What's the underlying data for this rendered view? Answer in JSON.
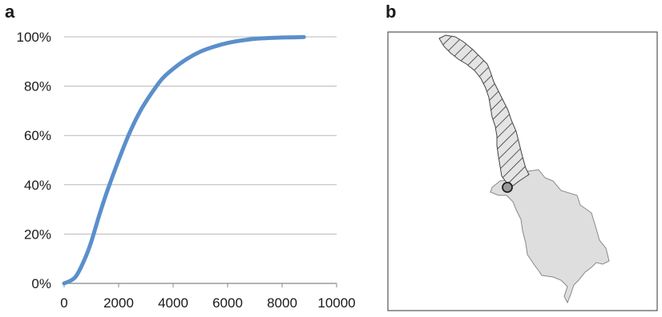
{
  "panels": {
    "a": {
      "letter": "a"
    },
    "b": {
      "letter": "b"
    }
  },
  "chart_data": {
    "type": "line",
    "title": "",
    "xlabel": "",
    "ylabel": "",
    "xlim": [
      0,
      10000
    ],
    "ylim": [
      0,
      100
    ],
    "x_ticks": [
      0,
      2000,
      4000,
      6000,
      8000,
      10000
    ],
    "x_tick_labels": [
      "0",
      "2000",
      "4000",
      "6000",
      "8000",
      "10000"
    ],
    "y_ticks": [
      0,
      20,
      40,
      60,
      80,
      100
    ],
    "y_tick_labels": [
      "0%",
      "20%",
      "40%",
      "60%",
      "80%",
      "100%"
    ],
    "grid": "horizontal",
    "legend": "none",
    "series": [
      {
        "color": "#5b8fcb",
        "x": [
          0,
          300,
          500,
          800,
          1000,
          1300,
          1600,
          2000,
          2400,
          2800,
          3200,
          3600,
          4000,
          4500,
          5000,
          5500,
          6000,
          6500,
          7000,
          7500,
          8000,
          8500,
          8800
        ],
        "y": [
          0,
          1.5,
          4,
          11,
          17,
          28,
          38,
          50,
          61,
          70,
          77,
          83,
          87,
          91,
          94,
          96,
          97.5,
          98.5,
          99.2,
          99.5,
          99.7,
          99.8,
          99.9
        ]
      }
    ]
  },
  "map": {
    "hatched_region_color": "#d8d8d8",
    "shaded_region_color": "#dedede",
    "marker": "circle"
  }
}
